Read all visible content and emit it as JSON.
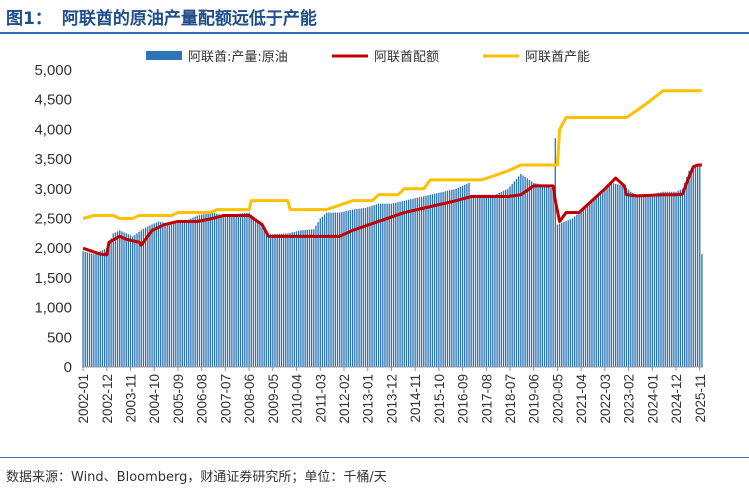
{
  "header": {
    "fig_label": "图1：",
    "title": "阿联酋的原油产量配额远低于产能"
  },
  "footer": {
    "source": "数据来源：Wind、Bloomberg，财通证券研究所；单位：千桶/天"
  },
  "colors": {
    "bars": "#2e75b6",
    "quota": "#c00000",
    "capacity": "#ffc000",
    "rule": "#2e6fb5"
  },
  "chart_data": {
    "type": "bar",
    "title": "",
    "xlabel": "",
    "ylabel": "",
    "ylim": [
      0,
      5000
    ],
    "yticks": [
      "0",
      "500",
      "1,000",
      "1,500",
      "2,000",
      "2,500",
      "3,000",
      "3,500",
      "4,000",
      "4,500",
      "5,000"
    ],
    "x_range": [
      "2002-01",
      "2025-12"
    ],
    "x_tick_labels": [
      "2002-01",
      "2002-12",
      "2003-11",
      "2004-10",
      "2005-09",
      "2006-08",
      "2007-07",
      "2008-06",
      "2009-05",
      "2010-04",
      "2011-03",
      "2012-02",
      "2013-01",
      "2013-12",
      "2014-11",
      "2015-10",
      "2016-09",
      "2017-08",
      "2018-07",
      "2019-06",
      "2020-05",
      "2021-04",
      "2022-03",
      "2023-02",
      "2024-01",
      "2024-12",
      "2025-11"
    ],
    "legend_position": "top",
    "series": [
      {
        "name": "阿联酋:产量:原油",
        "type": "bar",
        "points": [
          [
            "2002-01",
            1950
          ],
          [
            "2002-06",
            1900
          ],
          [
            "2002-12",
            2000
          ],
          [
            "2003-03",
            2250
          ],
          [
            "2003-06",
            2300
          ],
          [
            "2003-12",
            2200
          ],
          [
            "2004-06",
            2350
          ],
          [
            "2004-12",
            2450
          ],
          [
            "2005-06",
            2400
          ],
          [
            "2005-12",
            2450
          ],
          [
            "2006-06",
            2550
          ],
          [
            "2007-01",
            2600
          ],
          [
            "2007-06",
            2550
          ],
          [
            "2008-01",
            2580
          ],
          [
            "2008-06",
            2600
          ],
          [
            "2008-12",
            2400
          ],
          [
            "2009-03",
            2230
          ],
          [
            "2009-12",
            2250
          ],
          [
            "2010-06",
            2300
          ],
          [
            "2010-12",
            2320
          ],
          [
            "2011-03",
            2500
          ],
          [
            "2011-06",
            2600
          ],
          [
            "2011-12",
            2600
          ],
          [
            "2012-06",
            2650
          ],
          [
            "2012-12",
            2680
          ],
          [
            "2013-06",
            2750
          ],
          [
            "2013-12",
            2750
          ],
          [
            "2014-06",
            2800
          ],
          [
            "2014-12",
            2850
          ],
          [
            "2015-06",
            2900
          ],
          [
            "2015-12",
            2950
          ],
          [
            "2016-06",
            3000
          ],
          [
            "2016-12",
            3100
          ],
          [
            "2017-01",
            2900
          ],
          [
            "2017-06",
            2900
          ],
          [
            "2017-12",
            2900
          ],
          [
            "2018-06",
            3000
          ],
          [
            "2018-12",
            3250
          ],
          [
            "2019-06",
            3100
          ],
          [
            "2019-12",
            3050
          ],
          [
            "2020-03",
            3000
          ],
          [
            "2020-04",
            3850
          ],
          [
            "2020-05",
            2400
          ],
          [
            "2020-12",
            2500
          ],
          [
            "2021-06",
            2700
          ],
          [
            "2021-12",
            2900
          ],
          [
            "2022-06",
            3100
          ],
          [
            "2022-12",
            3050
          ],
          [
            "2023-03",
            2950
          ],
          [
            "2023-06",
            2900
          ],
          [
            "2023-12",
            2900
          ],
          [
            "2024-06",
            2950
          ],
          [
            "2024-12",
            2950
          ],
          [
            "2025-03",
            3000
          ],
          [
            "2025-06",
            3300
          ],
          [
            "2025-10",
            3400
          ],
          [
            "2025-11",
            3420
          ],
          [
            "2025-12",
            1900
          ]
        ]
      },
      {
        "name": "阿联酋配额",
        "type": "line",
        "points": [
          [
            "2002-01",
            2000
          ],
          [
            "2002-09",
            1900
          ],
          [
            "2002-12",
            1890
          ],
          [
            "2003-01",
            2100
          ],
          [
            "2003-06",
            2200
          ],
          [
            "2003-09",
            2150
          ],
          [
            "2004-03",
            2100
          ],
          [
            "2004-04",
            2050
          ],
          [
            "2004-09",
            2300
          ],
          [
            "2005-03",
            2400
          ],
          [
            "2005-09",
            2450
          ],
          [
            "2006-06",
            2450
          ],
          [
            "2007-01",
            2500
          ],
          [
            "2007-06",
            2550
          ],
          [
            "2008-06",
            2550
          ],
          [
            "2008-12",
            2400
          ],
          [
            "2009-03",
            2200
          ],
          [
            "2010-06",
            2200
          ],
          [
            "2011-12",
            2200
          ],
          [
            "2012-06",
            2300
          ],
          [
            "2013-06",
            2450
          ],
          [
            "2014-06",
            2600
          ],
          [
            "2015-06",
            2700
          ],
          [
            "2016-06",
            2800
          ],
          [
            "2017-01",
            2870
          ],
          [
            "2017-06",
            2870
          ],
          [
            "2018-06",
            2870
          ],
          [
            "2018-12",
            2900
          ],
          [
            "2019-06",
            3050
          ],
          [
            "2020-03",
            3050
          ],
          [
            "2020-04",
            2800
          ],
          [
            "2020-06",
            2450
          ],
          [
            "2020-09",
            2600
          ],
          [
            "2021-03",
            2600
          ],
          [
            "2021-06",
            2700
          ],
          [
            "2022-03",
            3000
          ],
          [
            "2022-08",
            3180
          ],
          [
            "2022-12",
            3050
          ],
          [
            "2023-01",
            2900
          ],
          [
            "2023-06",
            2880
          ],
          [
            "2024-06",
            2900
          ],
          [
            "2024-12",
            2900
          ],
          [
            "2025-03",
            2910
          ],
          [
            "2025-06",
            3200
          ],
          [
            "2025-08",
            3370
          ],
          [
            "2025-10",
            3400
          ],
          [
            "2025-12",
            3400
          ]
        ]
      },
      {
        "name": "阿联酋产能",
        "type": "line",
        "points": [
          [
            "2002-01",
            2500
          ],
          [
            "2002-06",
            2550
          ],
          [
            "2003-03",
            2550
          ],
          [
            "2003-06",
            2500
          ],
          [
            "2003-12",
            2500
          ],
          [
            "2004-03",
            2550
          ],
          [
            "2005-06",
            2550
          ],
          [
            "2005-09",
            2600
          ],
          [
            "2006-12",
            2600
          ],
          [
            "2007-03",
            2650
          ],
          [
            "2008-06",
            2650
          ],
          [
            "2008-07",
            2800
          ],
          [
            "2009-12",
            2800
          ],
          [
            "2010-01",
            2650
          ],
          [
            "2011-06",
            2650
          ],
          [
            "2012-06",
            2800
          ],
          [
            "2013-03",
            2800
          ],
          [
            "2013-06",
            2900
          ],
          [
            "2014-03",
            2900
          ],
          [
            "2014-06",
            3000
          ],
          [
            "2015-03",
            3000
          ],
          [
            "2015-06",
            3150
          ],
          [
            "2017-06",
            3150
          ],
          [
            "2018-06",
            3300
          ],
          [
            "2018-12",
            3400
          ],
          [
            "2020-05",
            3400
          ],
          [
            "2020-06",
            4000
          ],
          [
            "2020-09",
            4200
          ],
          [
            "2023-01",
            4200
          ],
          [
            "2023-09",
            4400
          ],
          [
            "2024-06",
            4650
          ],
          [
            "2025-12",
            4650
          ]
        ]
      }
    ]
  }
}
